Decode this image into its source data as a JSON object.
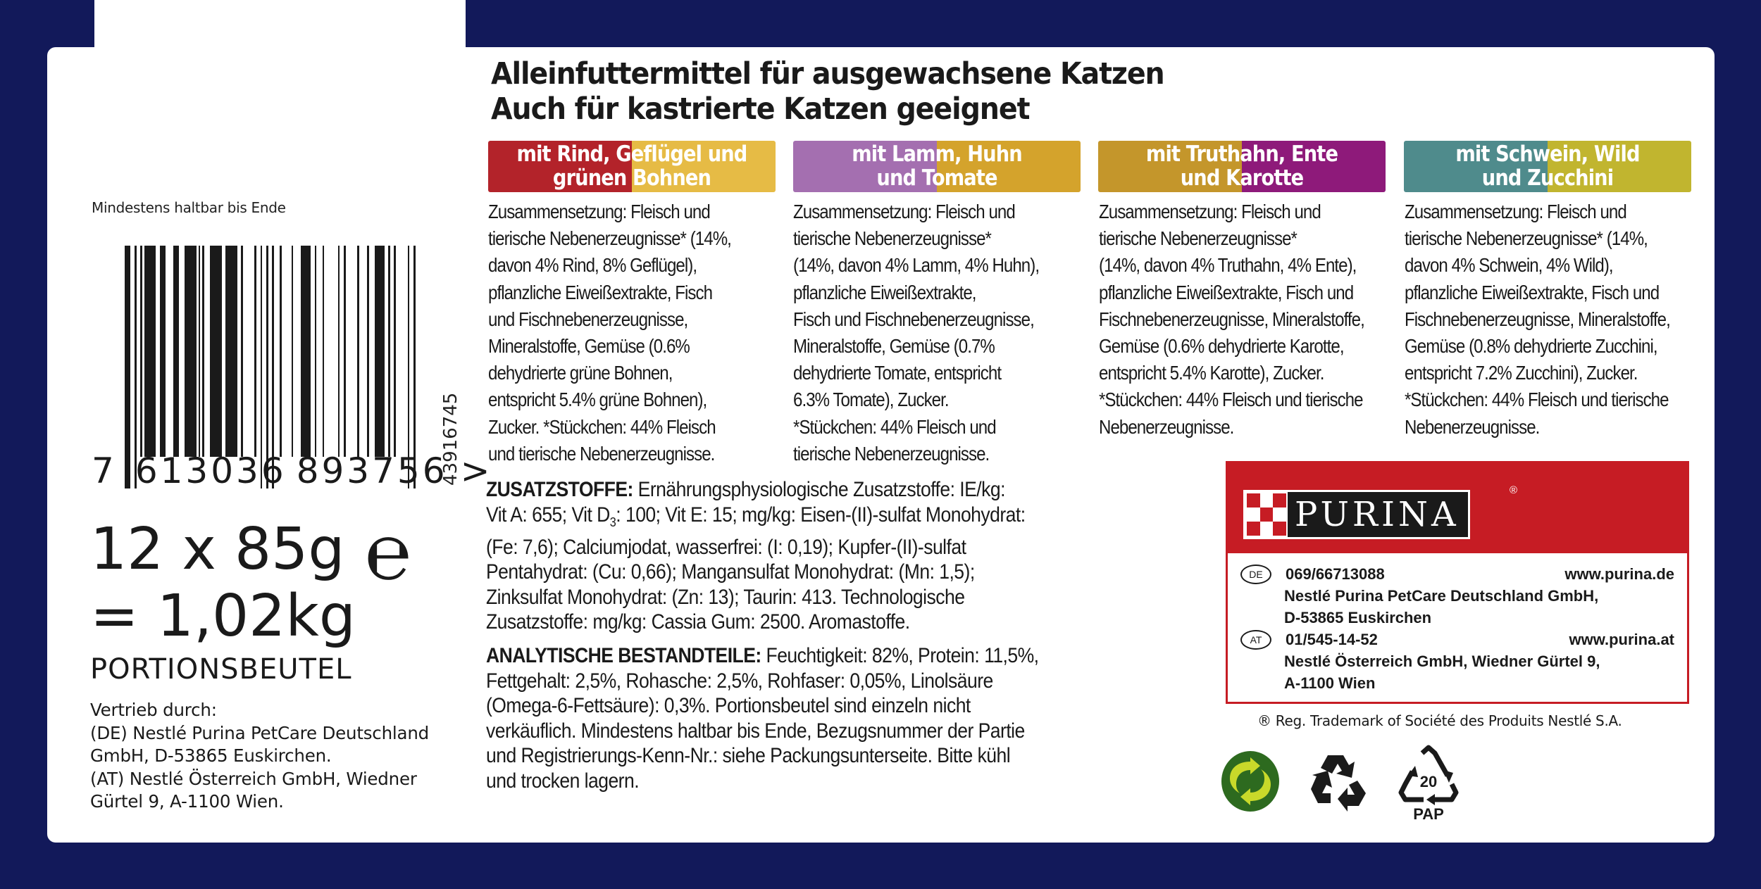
{
  "headline": {
    "line1": "Alleinfuttermittel für ausgewachsene Katzen",
    "line2": "Auch für kastrierte Katzen geeignet"
  },
  "best_before_label": "Mindestens haltbar bis Ende",
  "barcode": {
    "digits_first": "7",
    "digits_left": "613036",
    "digits_right": "893756",
    "digits_end": ">",
    "vertical_code": "43916745"
  },
  "quantity": {
    "line1": "12 x 85g",
    "estimated_sign": "℮",
    "line2": "= 1,02kg",
    "unit": "PORTIONSBEUTEL"
  },
  "distributor": {
    "text": "Vertrieb durch:\n(DE) Nestlé Purina PetCare Deutschland\nGmbH, D-53865 Euskirchen.\n(AT) Nestlé Österreich GmbH, Wiedner\nGürtel 9, A-1100 Wien."
  },
  "flavors": [
    {
      "label": "mit Rind, Geflügel und\ngrünen Bohnen",
      "color_left": "#b3232a",
      "color_right": "#e6bb45",
      "composition": "Zusammensetzung: Fleisch und\ntierische Nebenerzeugnisse* (14%,\ndavon 4% Rind, 8% Geflügel),\npflanzliche Eiweißextrakte, Fisch\nund Fischnebenerzeugnisse,\nMineralstoffe, Gemüse (0.6%\ndehydrierte grüne Bohnen,\nentspricht 5.4% grüne Bohnen),\nZucker. *Stückchen: 44% Fleisch\nund tierische Nebenerzeugnisse."
    },
    {
      "label": "mit Lamm, Huhn\nund Tomate",
      "color_left": "#a46fb0",
      "color_right": "#d4a32c",
      "composition": "Zusammensetzung: Fleisch und\ntierische Nebenerzeugnisse*\n(14%, davon 4% Lamm, 4% Huhn),\npflanzliche Eiweißextrakte,\nFisch und Fischnebenerzeugnisse,\nMineralstoffe, Gemüse (0.7%\ndehydrierte Tomate, entspricht\n6.3% Tomate), Zucker.\n*Stückchen: 44% Fleisch und\ntierische Nebenerzeugnisse."
    },
    {
      "label": "mit Truthahn, Ente\nund Karotte",
      "color_left": "#c4962b",
      "color_right": "#8e1a7a",
      "composition": "Zusammensetzung: Fleisch und\ntierische Nebenerzeugnisse*\n(14%, davon 4% Truthahn, 4% Ente),\npflanzliche Eiweißextrakte, Fisch und\nFischnebenerzeugnisse, Mineralstoffe,\nGemüse (0.6% dehydrierte Karotte,\nentspricht 5.4% Karotte), Zucker.\n*Stückchen: 44% Fleisch und tierische\nNebenerzeugnisse."
    },
    {
      "label": "mit Schwein, Wild\nund Zucchini",
      "color_left": "#4f8b8c",
      "color_right": "#c1b52f",
      "composition": "Zusammensetzung: Fleisch und\ntierische Nebenerzeugnisse* (14%,\ndavon 4% Schwein, 4% Wild),\npflanzliche Eiweißextrakte, Fisch und\nFischnebenerzeugnisse, Mineralstoffe,\nGemüse (0.8% dehydrierte Zucchini,\nentspricht 7.2% Zucchini), Zucker.\n*Stückchen: 44% Fleisch und tierische\nNebenerzeugnisse."
    }
  ],
  "additives": {
    "heading": "ZUSATZSTOFFE:",
    "text_part1": " Ernährungsphysiologische Zusatzstoffe: IE/kg:\nVit A: 655; Vit D",
    "subscript": "3",
    "text_part2": ": 100; Vit E: 15; mg/kg: Eisen-(II)-sulfat Monohydrat:\n(Fe: 7,6); Calciumjodat, wasserfrei: (I: 0,19); Kupfer-(II)-sulfat\nPentahydrat: (Cu: 0,66); Mangansulfat Monohydrat: (Mn: 1,5);\nZinksulfat Monohydrat: (Zn: 13); Taurin: 413. Technologische\nZusatzstoffe: mg/kg: Cassia Gum: 2500. Aromastoffe."
  },
  "analytical": {
    "heading": "ANALYTISCHE BESTANDTEILE:",
    "text": " Feuchtigkeit: 82%, Protein: 11,5%,\nFettgehalt: 2,5%, Rohasche: 2,5%, Rohfaser: 0,05%, Linolsäure\n(Omega-6-Fettsäure): 0,3%. Portionsbeutel sind einzeln nicht\nverkäuflich. Mindestens haltbar bis Ende, Bezugsnummer der Partie\nund Registrierungs-Kenn-Nr.: siehe Packungsunterseite. Bitte kühl\nund trocken lagern."
  },
  "purina": {
    "logo_text": "PURINA",
    "registered": "®",
    "brand_color": "#c61c24",
    "de": {
      "badge": "DE",
      "phone": "069/66713088",
      "web": "www.purina.de",
      "line1": "Nestlé Purina PetCare Deutschland GmbH,",
      "line2": "D-53865 Euskirchen"
    },
    "at": {
      "badge": "AT",
      "phone": "01/545-14-52",
      "web": "www.purina.at",
      "line1": "Nestlé Österreich GmbH, Wiedner Gürtel 9,",
      "line2": "A-1100 Wien"
    }
  },
  "trademark": "® Reg. Trademark of Société des Produits Nestlé S.A.",
  "recycling": {
    "gruener_punkt": "green-dot-icon",
    "recycle": "recycle-icon",
    "pap_number": "20",
    "pap_label": "PAP"
  },
  "colors": {
    "background": "#12195a",
    "panel": "#ffffff",
    "text": "#1a1a1a"
  }
}
